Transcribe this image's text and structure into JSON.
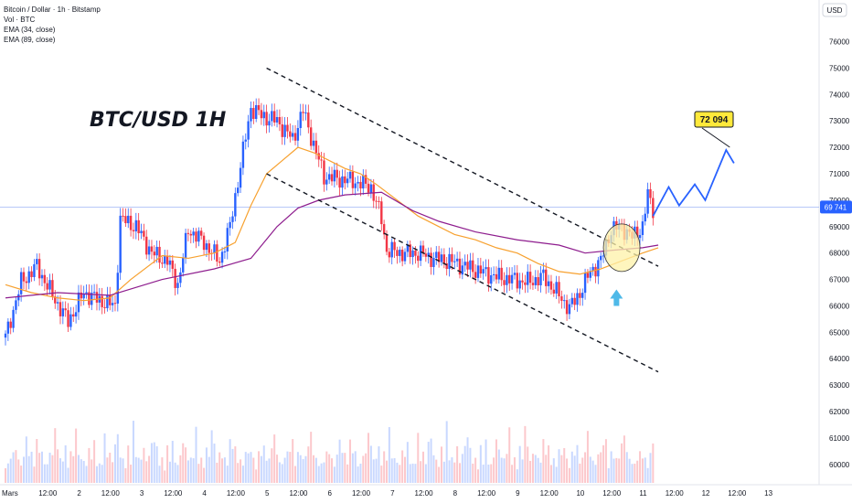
{
  "header": {
    "symbol_line": "Bitcoin / Dollar · 1h · Bitstamp",
    "indicators": [
      "Vol · BTC",
      "EMA (34, close)",
      "EMA (89, close)"
    ]
  },
  "currency": "USD",
  "chart_data": {
    "type": "line",
    "title": "BTC/USD 1H",
    "ylim": [
      59300,
      77300
    ],
    "yticks": [
      60000,
      61000,
      62000,
      63000,
      64000,
      65000,
      66000,
      67000,
      68000,
      69000,
      70000,
      71000,
      72000,
      73000,
      74000,
      75000,
      76000
    ],
    "xticks": [
      "Mars",
      "12:00",
      "2",
      "12:00",
      "3",
      "12:00",
      "4",
      "12:00",
      "5",
      "12:00",
      "6",
      "12:00",
      "7",
      "12:00",
      "8",
      "12:00",
      "9",
      "12:00",
      "10",
      "12:00",
      "11",
      "12:00",
      "12",
      "12:00",
      "13"
    ],
    "x_hours_range": [
      0,
      306
    ],
    "last_price": 69741,
    "last_price_label": "69 741",
    "target_label": "72 094",
    "ohlc_hourly_sample": [
      {
        "h": 0,
        "c": 64800
      },
      {
        "h": 6,
        "c": 66900
      },
      {
        "h": 12,
        "c": 67500
      },
      {
        "h": 18,
        "c": 66400
      },
      {
        "h": 24,
        "c": 65400
      },
      {
        "h": 30,
        "c": 66500
      },
      {
        "h": 36,
        "c": 66200
      },
      {
        "h": 42,
        "c": 66000
      },
      {
        "h": 44,
        "c": 69300
      },
      {
        "h": 50,
        "c": 69000
      },
      {
        "h": 56,
        "c": 68000
      },
      {
        "h": 62,
        "c": 67700
      },
      {
        "h": 66,
        "c": 66800
      },
      {
        "h": 70,
        "c": 68900
      },
      {
        "h": 76,
        "c": 68400
      },
      {
        "h": 82,
        "c": 67700
      },
      {
        "h": 86,
        "c": 69000
      },
      {
        "h": 90,
        "c": 71300
      },
      {
        "h": 94,
        "c": 73500
      },
      {
        "h": 98,
        "c": 73200
      },
      {
        "h": 104,
        "c": 73000
      },
      {
        "h": 110,
        "c": 72300
      },
      {
        "h": 114,
        "c": 73400
      },
      {
        "h": 118,
        "c": 72100
      },
      {
        "h": 122,
        "c": 70900
      },
      {
        "h": 128,
        "c": 70800
      },
      {
        "h": 134,
        "c": 70700
      },
      {
        "h": 140,
        "c": 70500
      },
      {
        "h": 144,
        "c": 69300
      },
      {
        "h": 146,
        "c": 68100
      },
      {
        "h": 152,
        "c": 68000
      },
      {
        "h": 158,
        "c": 68000
      },
      {
        "h": 164,
        "c": 67800
      },
      {
        "h": 170,
        "c": 67700
      },
      {
        "h": 176,
        "c": 67500
      },
      {
        "h": 182,
        "c": 67300
      },
      {
        "h": 188,
        "c": 67100
      },
      {
        "h": 194,
        "c": 67000
      },
      {
        "h": 200,
        "c": 66900
      },
      {
        "h": 206,
        "c": 67100
      },
      {
        "h": 212,
        "c": 66400
      },
      {
        "h": 216,
        "c": 65900
      },
      {
        "h": 220,
        "c": 66500
      },
      {
        "h": 224,
        "c": 67300
      },
      {
        "h": 228,
        "c": 67700
      },
      {
        "h": 232,
        "c": 68900
      },
      {
        "h": 236,
        "c": 69000
      },
      {
        "h": 240,
        "c": 68600
      },
      {
        "h": 244,
        "c": 69000
      },
      {
        "h": 246,
        "c": 70200
      },
      {
        "h": 248,
        "c": 69700
      }
    ],
    "series": [
      {
        "name": "EMA (34, close)",
        "color": "#f7a12f",
        "values": [
          [
            0,
            66800
          ],
          [
            10,
            66500
          ],
          [
            20,
            66300
          ],
          [
            30,
            66200
          ],
          [
            40,
            66300
          ],
          [
            48,
            67000
          ],
          [
            60,
            67900
          ],
          [
            70,
            67800
          ],
          [
            80,
            68000
          ],
          [
            88,
            68400
          ],
          [
            94,
            69800
          ],
          [
            100,
            71000
          ],
          [
            106,
            71500
          ],
          [
            112,
            72000
          ],
          [
            118,
            71800
          ],
          [
            124,
            71500
          ],
          [
            130,
            71200
          ],
          [
            136,
            71000
          ],
          [
            142,
            70600
          ],
          [
            150,
            70000
          ],
          [
            158,
            69400
          ],
          [
            166,
            69000
          ],
          [
            172,
            68700
          ],
          [
            180,
            68500
          ],
          [
            188,
            68200
          ],
          [
            196,
            68000
          ],
          [
            204,
            67600
          ],
          [
            212,
            67300
          ],
          [
            220,
            67200
          ],
          [
            228,
            67400
          ],
          [
            236,
            67700
          ],
          [
            244,
            68000
          ],
          [
            250,
            68200
          ]
        ]
      },
      {
        "name": "EMA (89, close)",
        "color": "#8e1d8e",
        "values": [
          [
            0,
            66300
          ],
          [
            20,
            66500
          ],
          [
            40,
            66400
          ],
          [
            60,
            67000
          ],
          [
            80,
            67400
          ],
          [
            94,
            67800
          ],
          [
            104,
            69000
          ],
          [
            112,
            69700
          ],
          [
            120,
            70000
          ],
          [
            130,
            70200
          ],
          [
            144,
            70300
          ],
          [
            156,
            69600
          ],
          [
            166,
            69200
          ],
          [
            180,
            68800
          ],
          [
            196,
            68500
          ],
          [
            212,
            68300
          ],
          [
            222,
            68000
          ],
          [
            232,
            68100
          ],
          [
            244,
            68200
          ],
          [
            250,
            68300
          ]
        ]
      }
    ],
    "channel_upper": [
      [
        100,
        75000
      ],
      [
        250,
        67500
      ]
    ],
    "channel_lower": [
      [
        100,
        71000
      ],
      [
        250,
        63500
      ]
    ],
    "forecast_path": [
      [
        248,
        69400
      ],
      [
        254,
        70500
      ],
      [
        258,
        69800
      ],
      [
        264,
        70600
      ],
      [
        268,
        70000
      ],
      [
        276,
        71900
      ],
      [
        279,
        71400
      ]
    ],
    "volume_hourly": [
      3,
      2,
      5,
      4,
      6,
      3,
      2,
      4,
      7,
      5,
      4,
      3,
      6,
      8,
      4,
      3,
      2,
      5,
      4,
      9,
      6,
      3,
      4,
      5,
      3,
      4,
      6,
      8,
      5,
      3
    ]
  },
  "colors": {
    "up": "#2962ff",
    "down": "#f23645",
    "volume_up": "#c9d8ff",
    "volume_down": "#fcc8cc",
    "last_price_bg": "#2962ff",
    "target_bg": "#ffe93b",
    "arrow_up": "#4fb9e8",
    "circle_fill": "#fdf1a8",
    "circle_stroke": "#333333",
    "axis_text": "#131722"
  }
}
